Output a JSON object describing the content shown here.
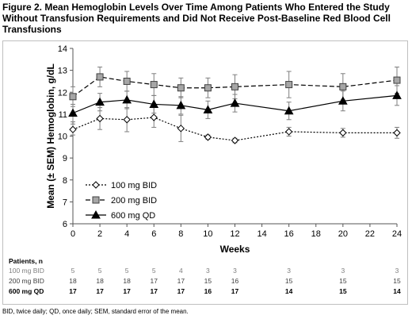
{
  "figure": {
    "title": "Figure 2. Mean Hemoglobin Levels Over Time Among Patients Who Entered the Study\nWithout Transfusion Requirements and Did Not Receive Post-Baseline Red Blood Cell\nTransfusions",
    "footnote": "BID, twice daily; QD, once daily; SEM, standard error of the mean."
  },
  "chart_data": {
    "type": "line",
    "title": "",
    "xlabel": "Weeks",
    "ylabel": "Mean (± SEM) Hemoglobin, g/dL",
    "xlim": [
      0,
      24
    ],
    "ylim": [
      6,
      14
    ],
    "x_ticks": [
      0,
      2,
      4,
      6,
      8,
      10,
      12,
      14,
      16,
      18,
      20,
      22,
      24
    ],
    "y_ticks": [
      6,
      7,
      8,
      9,
      10,
      11,
      12,
      13,
      14
    ],
    "grid": false,
    "legend_position": "left",
    "series": [
      {
        "name": "100 mg BID",
        "marker": "diamond-open",
        "line_style": "dotted",
        "color": "#000000",
        "x": [
          0,
          2,
          4,
          6,
          8,
          10,
          12,
          16,
          20,
          24
        ],
        "y": [
          10.3,
          10.8,
          10.75,
          10.85,
          10.35,
          9.95,
          9.8,
          10.2,
          10.15,
          10.15
        ],
        "err": [
          0.25,
          0.5,
          0.55,
          0.45,
          0.6,
          0.1,
          0.1,
          0.2,
          0.2,
          0.25
        ]
      },
      {
        "name": "200 mg BID",
        "marker": "square-gray",
        "line_style": "dashed",
        "color": "#000000",
        "x": [
          0,
          2,
          4,
          6,
          8,
          10,
          12,
          16,
          20,
          24
        ],
        "y": [
          11.8,
          12.7,
          12.5,
          12.35,
          12.2,
          12.2,
          12.25,
          12.35,
          12.25,
          12.55
        ],
        "err": [
          0.45,
          0.45,
          0.45,
          0.5,
          0.45,
          0.45,
          0.55,
          0.6,
          0.6,
          0.6
        ]
      },
      {
        "name": "600 mg QD",
        "marker": "triangle-filled",
        "line_style": "solid",
        "color": "#000000",
        "x": [
          0,
          2,
          4,
          6,
          8,
          10,
          12,
          16,
          20,
          24
        ],
        "y": [
          11.05,
          11.55,
          11.65,
          11.45,
          11.4,
          11.2,
          11.5,
          11.15,
          11.6,
          11.85
        ],
        "err": [
          0.4,
          0.4,
          0.4,
          0.4,
          0.4,
          0.4,
          0.4,
          0.4,
          0.45,
          0.45
        ]
      }
    ]
  },
  "patients_table": {
    "header": "Patients, n",
    "rows": [
      {
        "label": "100 mg BID",
        "color": "#7f7f7f",
        "bold": false,
        "values": [
          "5",
          "5",
          "5",
          "5",
          "4",
          "3",
          "3",
          "3",
          "3",
          "3"
        ]
      },
      {
        "label": "200 mg BID",
        "color": "#404040",
        "bold": false,
        "values": [
          "18",
          "18",
          "18",
          "17",
          "17",
          "15",
          "16",
          "15",
          "15",
          "15"
        ]
      },
      {
        "label": "600 mg QD",
        "color": "#000000",
        "bold": true,
        "values": [
          "17",
          "17",
          "17",
          "17",
          "17",
          "16",
          "17",
          "14",
          "15",
          "14"
        ]
      }
    ],
    "weeks": [
      0,
      2,
      4,
      6,
      8,
      10,
      12,
      16,
      20,
      24
    ]
  }
}
